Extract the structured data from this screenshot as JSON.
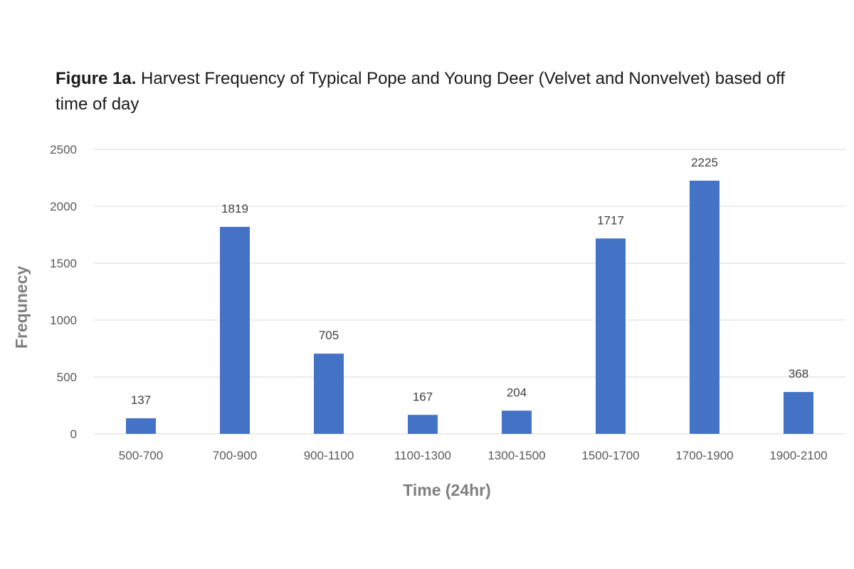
{
  "title": {
    "bold": "Figure 1a.",
    "text": " Harvest Frequency of Typical Pope and Young Deer (Velvet and Nonvelvet) based off time of day"
  },
  "chart_data": {
    "type": "bar",
    "categories": [
      "500-700",
      "700-900",
      "900-1100",
      "1100-1300",
      "1300-1500",
      "1500-1700",
      "1700-1900",
      "1900-2100"
    ],
    "values": [
      137,
      1819,
      705,
      167,
      204,
      1717,
      2225,
      368
    ],
    "xlabel": "Time (24hr)",
    "ylabel": "Frequnecy",
    "ylim": [
      0,
      2500
    ],
    "yticks": [
      0,
      500,
      1000,
      1500,
      2000,
      2500
    ],
    "grid": true,
    "legend": "none",
    "bar_color": "#4472c4",
    "grid_color": "#d9d9d9"
  }
}
